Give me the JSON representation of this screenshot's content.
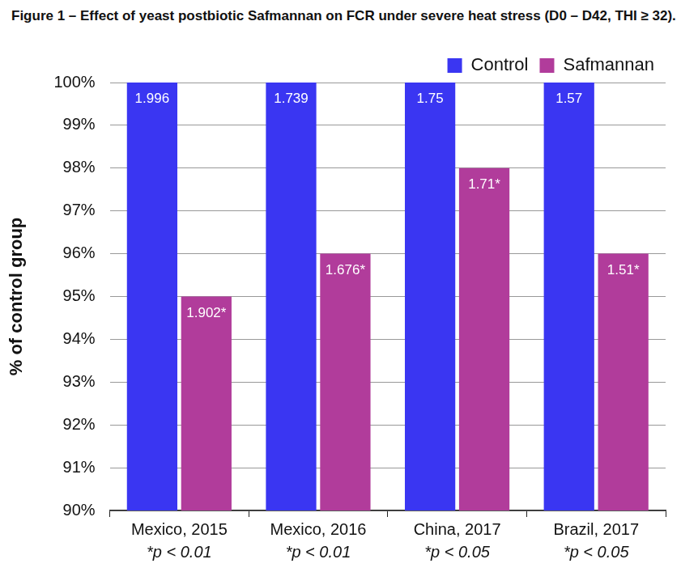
{
  "chart_data": {
    "type": "bar",
    "title": "Figure 1 – Effect of yeast postbiotic Safmannan on FCR under severe heat stress (D0 – D42, THI ≥ 32).",
    "y_label": "% of control group",
    "categories": [
      "Mexico, 2015",
      "Mexico, 2016",
      "China, 2017",
      "Brazil, 2017"
    ],
    "category_notes": [
      "*p < 0.01",
      "*p < 0.01",
      "*p < 0.05",
      "*p < 0.05"
    ],
    "series": [
      {
        "name": "Control",
        "color": "#3a36f2",
        "values": [
          100,
          100,
          100,
          100
        ],
        "fcr_labels": [
          "1.996",
          "1.739",
          "1.75",
          "1.57"
        ]
      },
      {
        "name": "Safmannan",
        "color": "#b13c9b",
        "values": [
          95,
          96,
          98,
          96
        ],
        "fcr_labels": [
          "1.902*",
          "1.676*",
          "1.71*",
          "1.51*"
        ]
      }
    ],
    "ylim": [
      90,
      100
    ],
    "yticks": [
      {
        "value": 90,
        "label": "90%"
      },
      {
        "value": 91,
        "label": "91%"
      },
      {
        "value": 92,
        "label": "92%"
      },
      {
        "value": 93,
        "label": "93%"
      },
      {
        "value": 94,
        "label": "94%"
      },
      {
        "value": 95,
        "label": "95%"
      },
      {
        "value": 96,
        "label": "96%"
      },
      {
        "value": 97,
        "label": "97%"
      },
      {
        "value": 98,
        "label": "98%"
      },
      {
        "value": 99,
        "label": "99%"
      },
      {
        "value": 100,
        "label": "100%"
      }
    ],
    "grid": true,
    "legend": "top-right"
  }
}
